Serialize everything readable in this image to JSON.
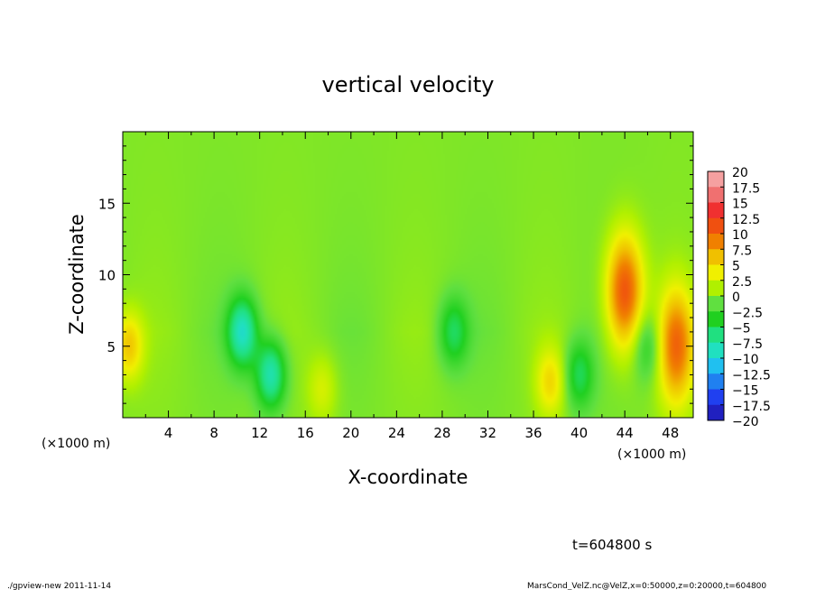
{
  "chart_data": {
    "type": "heatmap",
    "title": "vertical velocity",
    "xlabel": "X-coordinate",
    "ylabel": "Z-coordinate",
    "x_unit_left": "(×1000 m)",
    "x_unit_right": "(×1000 m)",
    "xlim": [
      0,
      50
    ],
    "ylim": [
      0,
      20
    ],
    "xticks": [
      4,
      8,
      12,
      16,
      20,
      24,
      28,
      32,
      36,
      40,
      44,
      48
    ],
    "yticks": [
      5,
      10,
      15
    ],
    "colorbar": {
      "min": -20,
      "max": 20,
      "labels": [
        "20",
        "17.5",
        "15",
        "12.5",
        "10",
        "7.5",
        "5",
        "2.5",
        "0",
        "-2.5",
        "-5",
        "-7.5",
        "-10",
        "-12.5",
        "-15",
        "-17.5",
        "-20"
      ],
      "colors": [
        "#f5a0a0",
        "#f07070",
        "#f03030",
        "#f05010",
        "#f08000",
        "#f0c000",
        "#f0f000",
        "#b0f000",
        "#60e040",
        "#20d020",
        "#20e080",
        "#20e0c0",
        "#20c0f0",
        "#2080f0",
        "#2040f0",
        "#2020c0",
        "#6020a0"
      ]
    },
    "background_level": 1.0,
    "features": [
      {
        "x": 44,
        "z": 8.8,
        "value": 12.5
      },
      {
        "x": 48.5,
        "z": 5,
        "value": 11
      },
      {
        "x": 0.5,
        "z": 5,
        "value": 7
      },
      {
        "x": 37.5,
        "z": 2.5,
        "value": 6
      },
      {
        "x": 17.5,
        "z": 2,
        "value": 4
      },
      {
        "x": 10.5,
        "z": 6,
        "value": -7.5
      },
      {
        "x": 13,
        "z": 3,
        "value": -7
      },
      {
        "x": 29,
        "z": 6,
        "value": -4
      },
      {
        "x": 40,
        "z": 3,
        "value": -4
      },
      {
        "x": 46,
        "z": 5,
        "value": -3
      }
    ],
    "time_label": "t=604800 s"
  },
  "footer": {
    "left": "./gpview-new 2011-11-14",
    "right": "MarsCond_VelZ.nc@VelZ,x=0:50000,z=0:20000,t=604800"
  }
}
